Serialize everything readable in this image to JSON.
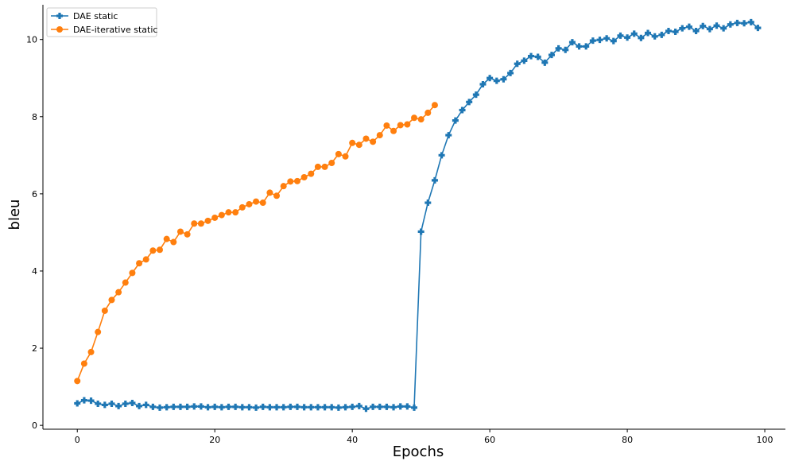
{
  "chart_data": {
    "type": "line",
    "xlabel": "Epochs",
    "ylabel": "bleu",
    "xlim": [
      -5,
      103
    ],
    "ylim": [
      -0.1,
      10.9
    ],
    "xticks": [
      0,
      20,
      40,
      60,
      80,
      100
    ],
    "yticks": [
      0,
      2,
      4,
      6,
      8,
      10
    ],
    "grid": false,
    "legend_position": "top-left",
    "series": [
      {
        "name": "DAE static",
        "color": "#1f77b4",
        "marker": "plus",
        "x": [
          0,
          1,
          2,
          3,
          4,
          5,
          6,
          7,
          8,
          9,
          10,
          11,
          12,
          13,
          14,
          15,
          16,
          17,
          18,
          19,
          20,
          21,
          22,
          23,
          24,
          25,
          26,
          27,
          28,
          29,
          30,
          31,
          32,
          33,
          34,
          35,
          36,
          37,
          38,
          39,
          40,
          41,
          42,
          43,
          44,
          45,
          46,
          47,
          48,
          49,
          50,
          51,
          52,
          53,
          54,
          55,
          56,
          57,
          58,
          59,
          60,
          61,
          62,
          63,
          64,
          65,
          66,
          67,
          68,
          69,
          70,
          71,
          72,
          73,
          74,
          75,
          76,
          77,
          78,
          79,
          80,
          81,
          82,
          83,
          84,
          85,
          86,
          87,
          88,
          89,
          90,
          91,
          92,
          93,
          94,
          95,
          96,
          97,
          98,
          99
        ],
        "values": [
          0.57,
          0.65,
          0.64,
          0.56,
          0.53,
          0.56,
          0.5,
          0.56,
          0.58,
          0.5,
          0.53,
          0.48,
          0.46,
          0.47,
          0.48,
          0.48,
          0.48,
          0.49,
          0.49,
          0.47,
          0.48,
          0.47,
          0.48,
          0.48,
          0.47,
          0.47,
          0.46,
          0.48,
          0.47,
          0.47,
          0.47,
          0.48,
          0.48,
          0.47,
          0.47,
          0.47,
          0.47,
          0.47,
          0.46,
          0.47,
          0.48,
          0.5,
          0.43,
          0.48,
          0.48,
          0.48,
          0.47,
          0.49,
          0.49,
          0.46,
          5.02,
          5.77,
          6.35,
          7.0,
          7.52,
          7.9,
          8.17,
          8.38,
          8.57,
          8.84,
          9.0,
          8.93,
          8.97,
          9.13,
          9.37,
          9.45,
          9.57,
          9.55,
          9.4,
          9.6,
          9.77,
          9.73,
          9.93,
          9.82,
          9.82,
          9.97,
          9.99,
          10.03,
          9.96,
          10.1,
          10.05,
          10.15,
          10.04,
          10.17,
          10.08,
          10.12,
          10.22,
          10.2,
          10.29,
          10.33,
          10.22,
          10.35,
          10.27,
          10.36,
          10.29,
          10.39,
          10.43,
          10.42,
          10.45,
          10.3
        ]
      },
      {
        "name": "DAE-iterative static",
        "color": "#ff7f0e",
        "marker": "circle",
        "x": [
          0,
          1,
          2,
          3,
          4,
          5,
          6,
          7,
          8,
          9,
          10,
          11,
          12,
          13,
          14,
          15,
          16,
          17,
          18,
          19,
          20,
          21,
          22,
          23,
          24,
          25,
          26,
          27,
          28,
          29,
          30,
          31,
          32,
          33,
          34,
          35,
          36,
          37,
          38,
          39,
          40,
          41,
          42,
          43,
          44,
          45,
          46,
          47,
          48,
          49,
          50,
          51,
          52
        ],
        "values": [
          1.15,
          1.6,
          1.9,
          2.42,
          2.97,
          3.25,
          3.45,
          3.7,
          3.95,
          4.2,
          4.3,
          4.53,
          4.55,
          4.83,
          4.75,
          5.02,
          4.95,
          5.23,
          5.23,
          5.3,
          5.38,
          5.45,
          5.52,
          5.52,
          5.65,
          5.73,
          5.8,
          5.77,
          6.03,
          5.95,
          6.2,
          6.32,
          6.33,
          6.43,
          6.52,
          6.7,
          6.7,
          6.8,
          7.03,
          6.97,
          7.32,
          7.27,
          7.43,
          7.35,
          7.52,
          7.77,
          7.63,
          7.78,
          7.8,
          7.97,
          7.93,
          8.1,
          8.3
        ]
      }
    ]
  }
}
